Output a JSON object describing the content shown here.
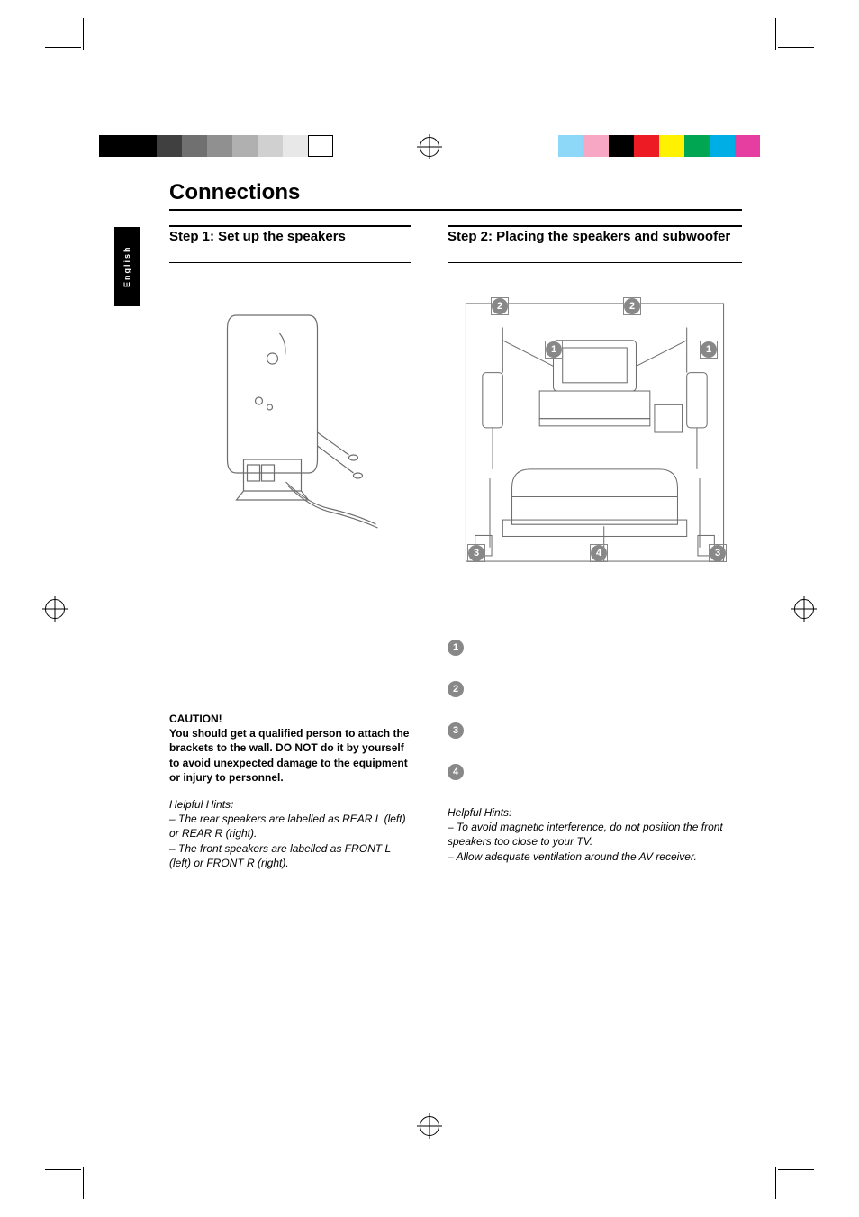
{
  "print_marks": {
    "left_swatches": [
      "#000000",
      "#000000",
      "#404040",
      "#707070",
      "#909090",
      "#b0b0b0",
      "#d0d0d0",
      "#e8e8e8",
      "#ffffff"
    ],
    "right_swatches": [
      "#e63ea0",
      "#00aee6",
      "#00a651",
      "#fff200",
      "#ed1c24",
      "#000000",
      "#f7a6c4",
      "#8dd8f8"
    ]
  },
  "language_tab": "English",
  "title": "Connections",
  "left": {
    "heading": "Step 1:  Set up the speakers",
    "caution_title": "CAUTION!",
    "caution_body": "You should get a qualified person to attach the brackets to the wall.  DO NOT do it by yourself to avoid unexpected damage to the equipment or injury to personnel.",
    "hints_title": "Helpful Hints:",
    "hint1": "–  The rear speakers are labelled as REAR L (left) or REAR R (right).",
    "hint2": "–  The front speakers are labelled as FRONT L (left) or FRONT R (right)."
  },
  "right": {
    "heading": "Step 2:  Placing the speakers and subwoofer",
    "placement_badges": [
      "2",
      "2",
      "1",
      "1",
      "3",
      "4",
      "3"
    ],
    "step_badges": [
      "1",
      "2",
      "3",
      "4"
    ],
    "hints_title": "Helpful Hints:",
    "hint1": "–  To avoid magnetic interference, do not position the front speakers too close to your TV.",
    "hint2": "–  Allow adequate ventilation around the AV receiver."
  },
  "colors": {
    "badge_bg": "#888888",
    "badge_fg": "#ffffff",
    "text": "#000000",
    "rule": "#000000"
  }
}
